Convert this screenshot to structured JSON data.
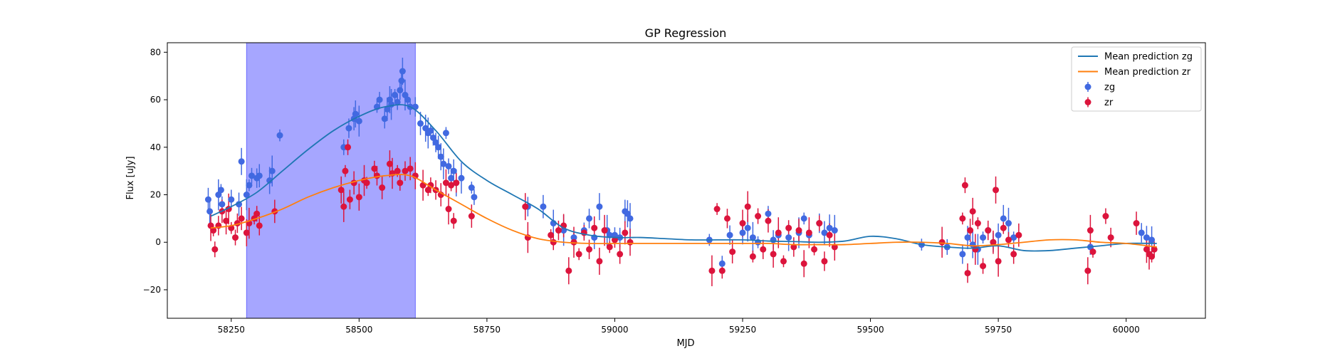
{
  "chart_data": {
    "type": "scatter",
    "title": "GP Regression",
    "xlabel": "MJD",
    "ylabel": "Flux [uJy]",
    "xlim": [
      58125,
      60155
    ],
    "ylim": [
      -32,
      84
    ],
    "xticks": [
      58250,
      58500,
      58750,
      59000,
      59250,
      59500,
      59750,
      60000
    ],
    "yticks": [
      -20,
      0,
      20,
      40,
      60,
      80
    ],
    "grid": false,
    "legend": {
      "placement": "top-right",
      "entries": [
        {
          "label": "Mean prediction zg",
          "kind": "line",
          "color": "#1f77b4"
        },
        {
          "label": "Mean prediction zr",
          "kind": "line",
          "color": "#ff7f0e"
        },
        {
          "label": "zg",
          "kind": "errorbar",
          "color": "#4169e1"
        },
        {
          "label": "zr",
          "kind": "errorbar",
          "color": "#dc143c"
        }
      ]
    },
    "shaded_region": {
      "x0": 58280,
      "x1": 58610,
      "color": "#a6a6ff"
    },
    "mean_lines": [
      {
        "name": "Mean prediction zg",
        "color": "#1f77b4",
        "x": [
          58210,
          58250,
          58300,
          58350,
          58400,
          58450,
          58500,
          58550,
          58600,
          58650,
          58700,
          58750,
          58800,
          58850,
          58900,
          58950,
          59000,
          59050,
          59100,
          59150,
          59200,
          59250,
          59300,
          59350,
          59400,
          59450,
          59500,
          59550,
          59600,
          59650,
          59700,
          59750,
          59800,
          59850,
          59900,
          59950,
          60000,
          60060
        ],
        "y": [
          11,
          15,
          21,
          30,
          39,
          47,
          53,
          57,
          57,
          47,
          34,
          26,
          20,
          14,
          6,
          3,
          2,
          2,
          1.5,
          1,
          1,
          1,
          0.5,
          0.3,
          0,
          0.5,
          2.5,
          1.5,
          -1,
          -2,
          -2.5,
          -1.5,
          -3.5,
          -3.5,
          -2.5,
          -1.5,
          -0.5,
          -0.5
        ]
      },
      {
        "name": "Mean prediction zr",
        "color": "#ff7f0e",
        "x": [
          58210,
          58250,
          58300,
          58350,
          58400,
          58450,
          58500,
          58550,
          58600,
          58650,
          58700,
          58750,
          58800,
          58850,
          58900,
          58950,
          59000,
          59050,
          59100,
          59150,
          59200,
          59250,
          59300,
          59350,
          59400,
          59450,
          59500,
          59550,
          59600,
          59650,
          59700,
          59750,
          59800,
          59850,
          59900,
          59950,
          60000,
          60060
        ],
        "y": [
          6,
          7,
          10,
          14,
          19,
          23,
          26,
          28,
          28,
          22,
          16,
          10,
          5,
          1.5,
          0,
          -0.5,
          -0.5,
          -0.5,
          -0.5,
          -0.5,
          -0.5,
          -0.5,
          -0.5,
          -1,
          -1,
          -1,
          -0.5,
          0,
          0,
          -0.5,
          -1.5,
          -1,
          0,
          1,
          1,
          0,
          -0.5,
          -2
        ]
      }
    ],
    "series": [
      {
        "name": "zg",
        "color": "#4169e1",
        "x": [
          58205,
          58208,
          58225,
          58230,
          58232,
          58250,
          58265,
          58270,
          58280,
          58285,
          58290,
          58300,
          58305,
          58325,
          58330,
          58345,
          58470,
          58480,
          58490,
          58493,
          58500,
          58535,
          58540,
          58550,
          58555,
          58560,
          58563,
          58570,
          58575,
          58580,
          58583,
          58585,
          58590,
          58595,
          58600,
          58610,
          58620,
          58630,
          58635,
          58640,
          58645,
          58650,
          58655,
          58660,
          58665,
          58670,
          58675,
          58680,
          58685,
          58690,
          58700,
          58720,
          58725,
          58830,
          58860,
          58880,
          58900,
          58920,
          58940,
          58950,
          58960,
          58970,
          58985,
          58990,
          59000,
          59010,
          59020,
          59025,
          59030,
          59185,
          59210,
          59225,
          59250,
          59260,
          59270,
          59280,
          59300,
          59310,
          59320,
          59340,
          59360,
          59370,
          59380,
          59400,
          59410,
          59420,
          59430,
          59600,
          59650,
          59680,
          59690,
          59700,
          59710,
          59720,
          59730,
          59740,
          59750,
          59760,
          59770,
          59780,
          59930,
          60030,
          60040,
          60050
        ],
        "y": [
          18,
          13,
          20,
          22,
          16,
          18,
          16,
          34,
          20,
          24,
          28,
          27,
          28,
          26,
          30,
          45,
          40,
          48,
          52,
          54,
          51,
          57,
          60,
          52,
          56,
          60,
          58,
          62,
          59,
          64,
          68,
          72,
          62,
          60,
          57,
          57,
          50,
          48,
          46,
          47,
          44,
          42,
          40,
          36,
          33,
          46,
          32,
          27,
          30,
          25,
          27,
          23,
          19,
          15,
          15,
          8,
          5,
          2,
          5,
          10,
          2,
          15,
          5,
          3,
          3,
          2,
          13,
          12,
          10,
          1,
          -9,
          3,
          4,
          6,
          2,
          0,
          12,
          1,
          3,
          2,
          4,
          10,
          3,
          8,
          4,
          6,
          5,
          -1,
          -2,
          -5,
          2,
          -1,
          -3,
          2,
          5,
          0,
          3,
          10,
          8,
          2,
          -2,
          4,
          2,
          1
        ]
      },
      {
        "name": "zr",
        "color": "#dc143c",
        "x": [
          58210,
          58215,
          58218,
          58225,
          58232,
          58240,
          58245,
          58250,
          58258,
          58262,
          58270,
          58280,
          58285,
          58295,
          58300,
          58305,
          58335,
          58465,
          58470,
          58473,
          58478,
          58482,
          58490,
          58500,
          58510,
          58515,
          58530,
          58535,
          58545,
          58560,
          58565,
          58575,
          58580,
          58590,
          58600,
          58610,
          58625,
          58635,
          58640,
          58650,
          58660,
          58670,
          58675,
          58680,
          58685,
          58690,
          58720,
          58825,
          58830,
          58875,
          58880,
          58890,
          58900,
          58910,
          58920,
          58930,
          58940,
          58950,
          58960,
          58970,
          58980,
          58990,
          59000,
          59010,
          59020,
          59030,
          59190,
          59200,
          59210,
          59220,
          59230,
          59250,
          59260,
          59270,
          59280,
          59290,
          59300,
          59310,
          59320,
          59330,
          59340,
          59350,
          59360,
          59370,
          59380,
          59390,
          59400,
          59410,
          59420,
          59430,
          59640,
          59680,
          59685,
          59690,
          59695,
          59700,
          59705,
          59710,
          59720,
          59730,
          59740,
          59745,
          59750,
          59760,
          59770,
          59780,
          59790,
          59925,
          59930,
          59935,
          59960,
          59970,
          60020,
          60040,
          60045,
          60050,
          60055
        ],
        "y": [
          7,
          5,
          -3,
          7,
          13,
          9,
          14,
          6,
          2,
          8,
          10,
          4,
          8,
          10,
          12,
          7,
          13,
          22,
          15,
          30,
          40,
          18,
          25,
          19,
          26,
          25,
          31,
          28,
          23,
          33,
          29,
          30,
          25,
          30,
          31,
          28,
          24,
          22,
          24,
          22,
          20,
          25,
          14,
          24,
          9,
          25,
          11,
          15,
          2,
          3,
          0,
          5,
          7,
          -12,
          0,
          -5,
          4,
          -3,
          6,
          -8,
          5,
          -2,
          1,
          -5,
          4,
          0,
          -12,
          14,
          -12,
          10,
          -4,
          8,
          15,
          -6,
          11,
          -3,
          9,
          -5,
          4,
          -8,
          6,
          -2,
          5,
          -9,
          4,
          -3,
          8,
          -8,
          3,
          -2,
          0,
          10,
          24,
          -13,
          5,
          13,
          -3,
          8,
          -10,
          5,
          0,
          22,
          -8,
          6,
          1,
          -5,
          3,
          -12,
          5,
          -4,
          11,
          2,
          8,
          -3,
          -5,
          -6,
          -3
        ]
      }
    ]
  }
}
